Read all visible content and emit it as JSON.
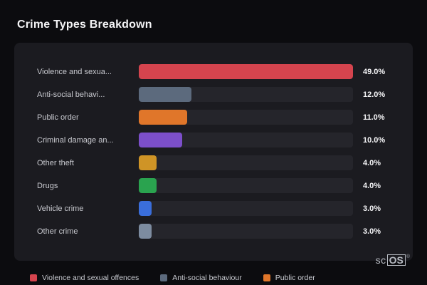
{
  "page": {
    "title": "Crime Types Breakdown"
  },
  "chart_data": {
    "type": "bar",
    "orientation": "horizontal",
    "title": "Crime Types Breakdown",
    "xlabel": "",
    "ylabel": "",
    "xlim": [
      0,
      49.0
    ],
    "grid": false,
    "categories": [
      "Violence and sexua...",
      "Anti-social behavi...",
      "Public order",
      "Criminal damage an...",
      "Other theft",
      "Drugs",
      "Vehicle crime",
      "Other crime"
    ],
    "values": [
      49.0,
      12.0,
      11.0,
      10.0,
      4.0,
      4.0,
      3.0,
      3.0
    ],
    "value_labels": [
      "49.0%",
      "12.0%",
      "11.0%",
      "10.0%",
      "4.0%",
      "4.0%",
      "3.0%",
      "3.0%"
    ],
    "bar_colors": [
      "#d5444e",
      "#5c6a7d",
      "#e0762a",
      "#7c4fca",
      "#cf9426",
      "#2aa34f",
      "#3a6edb",
      "#7d8ca0"
    ],
    "legend_position": "bottom"
  },
  "legend": {
    "items": [
      {
        "label": "Violence and sexual offences",
        "color": "#d5444e"
      },
      {
        "label": "Anti-social behaviour",
        "color": "#5c6a7d"
      },
      {
        "label": "Public order",
        "color": "#e0762a"
      }
    ]
  },
  "branding": {
    "sc": "sc",
    "os": "OS",
    "reg": "®"
  },
  "colors": {
    "background": "#0c0c0f",
    "card": "#1b1b20",
    "track": "#25252b",
    "label": "#c9cad0",
    "value": "#f5f5f7"
  }
}
